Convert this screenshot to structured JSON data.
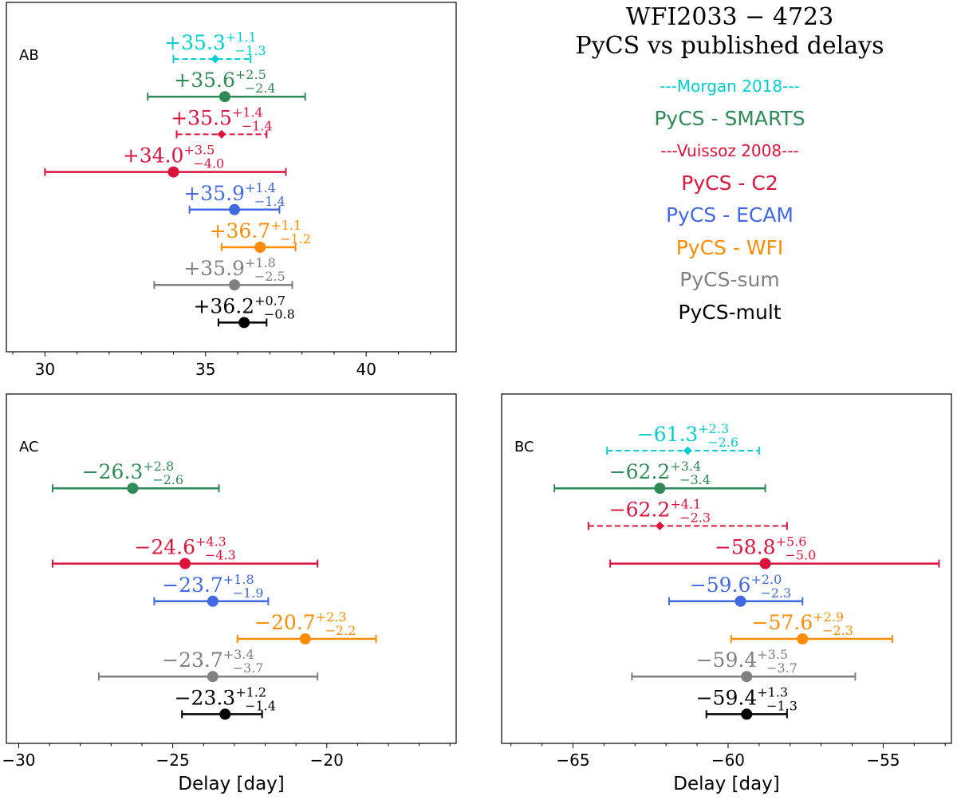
{
  "figure": {
    "title_line1": "WFI2033 − 4723",
    "title_line2": "PyCS vs published delays"
  },
  "legend": [
    {
      "label": "---Morgan 2018---",
      "color": "#00CED1",
      "size": "small"
    },
    {
      "label": "PyCS - SMARTS",
      "color": "#2E8B57",
      "size": "normal"
    },
    {
      "label": "---Vuissoz 2008---",
      "color": "#DC143C",
      "size": "small"
    },
    {
      "label": "PyCS - C2",
      "color": "#DC143C",
      "size": "normal"
    },
    {
      "label": "PyCS - ECAM",
      "color": "#4169E1",
      "size": "normal"
    },
    {
      "label": "PyCS - WFI",
      "color": "#FF8C00",
      "size": "normal"
    },
    {
      "label": "PyCS-sum",
      "color": "#808080",
      "size": "normal"
    },
    {
      "label": "PyCS-mult",
      "color": "#000000",
      "size": "normal"
    }
  ],
  "chart_data": [
    {
      "type": "errorbar",
      "panel_label": "AB",
      "xlabel": "",
      "xlim": [
        28.8,
        42.8
      ],
      "xticks": [
        30,
        35,
        40
      ],
      "xtick_labels": [
        "30",
        "35",
        "40"
      ],
      "rows": [
        {
          "name": "Morgan 2018",
          "value": 35.3,
          "plus": 1.1,
          "minus": 1.3,
          "label": "+35.3",
          "plus_label": "+1.1",
          "minus_label": "−1.3",
          "color": "#00CED1",
          "marker": "diamond",
          "dashed": true
        },
        {
          "name": "PyCS - SMARTS",
          "value": 35.6,
          "plus": 2.5,
          "minus": 2.4,
          "label": "+35.6",
          "plus_label": "+2.5",
          "minus_label": "−2.4",
          "color": "#2E8B57",
          "marker": "circle",
          "dashed": false
        },
        {
          "name": "Vuissoz 2008",
          "value": 35.5,
          "plus": 1.4,
          "minus": 1.4,
          "label": "+35.5",
          "plus_label": "+1.4",
          "minus_label": "−1.4",
          "color": "#DC143C",
          "marker": "diamond",
          "dashed": true
        },
        {
          "name": "PyCS - C2",
          "value": 34.0,
          "plus": 3.5,
          "minus": 4.0,
          "label": "+34.0",
          "plus_label": "+3.5",
          "minus_label": "−4.0",
          "color": "#DC143C",
          "marker": "circle",
          "dashed": false
        },
        {
          "name": "PyCS - ECAM",
          "value": 35.9,
          "plus": 1.4,
          "minus": 1.4,
          "label": "+35.9",
          "plus_label": "+1.4",
          "minus_label": "−1.4",
          "color": "#4169E1",
          "marker": "circle",
          "dashed": false
        },
        {
          "name": "PyCS - WFI",
          "value": 36.7,
          "plus": 1.1,
          "minus": 1.2,
          "label": "+36.7",
          "plus_label": "+1.1",
          "minus_label": "−1.2",
          "color": "#FF8C00",
          "marker": "circle",
          "dashed": false
        },
        {
          "name": "PyCS-sum",
          "value": 35.9,
          "plus": 1.8,
          "minus": 2.5,
          "label": "+35.9",
          "plus_label": "+1.8",
          "minus_label": "−2.5",
          "color": "#808080",
          "marker": "circle",
          "dashed": false
        },
        {
          "name": "PyCS-mult",
          "value": 36.2,
          "plus": 0.7,
          "minus": 0.8,
          "label": "+36.2",
          "plus_label": "+0.7",
          "minus_label": "−0.8",
          "color": "#000000",
          "marker": "circle",
          "dashed": false
        }
      ]
    },
    {
      "type": "errorbar",
      "panel_label": "AC",
      "xlabel": "Delay [day]",
      "xlim": [
        -30.4,
        -15.8
      ],
      "xticks": [
        -30,
        -25,
        -20
      ],
      "xtick_labels": [
        "−30",
        "−25",
        "−20"
      ],
      "rows": [
        {
          "name": "Morgan 2018",
          "value": null
        },
        {
          "name": "PyCS - SMARTS",
          "value": -26.3,
          "plus": 2.8,
          "minus": 2.6,
          "label": "−26.3",
          "plus_label": "+2.8",
          "minus_label": "−2.6",
          "color": "#2E8B57",
          "marker": "circle",
          "dashed": false
        },
        {
          "name": "Vuissoz 2008",
          "value": null
        },
        {
          "name": "PyCS - C2",
          "value": -24.6,
          "plus": 4.3,
          "minus": 4.3,
          "label": "−24.6",
          "plus_label": "+4.3",
          "minus_label": "−4.3",
          "color": "#DC143C",
          "marker": "circle",
          "dashed": false
        },
        {
          "name": "PyCS - ECAM",
          "value": -23.7,
          "plus": 1.8,
          "minus": 1.9,
          "label": "−23.7",
          "plus_label": "+1.8",
          "minus_label": "−1.9",
          "color": "#4169E1",
          "marker": "circle",
          "dashed": false
        },
        {
          "name": "PyCS - WFI",
          "value": -20.7,
          "plus": 2.3,
          "minus": 2.2,
          "label": "−20.7",
          "plus_label": "+2.3",
          "minus_label": "−2.2",
          "color": "#FF8C00",
          "marker": "circle",
          "dashed": false
        },
        {
          "name": "PyCS-sum",
          "value": -23.7,
          "plus": 3.4,
          "minus": 3.7,
          "label": "−23.7",
          "plus_label": "+3.4",
          "minus_label": "−3.7",
          "color": "#808080",
          "marker": "circle",
          "dashed": false
        },
        {
          "name": "PyCS-mult",
          "value": -23.3,
          "plus": 1.2,
          "minus": 1.4,
          "label": "−23.3",
          "plus_label": "+1.2",
          "minus_label": "−1.4",
          "color": "#000000",
          "marker": "circle",
          "dashed": false
        }
      ]
    },
    {
      "type": "errorbar",
      "panel_label": "BC",
      "xlabel": "Delay [day]",
      "xlim": [
        -67.3,
        -52.8
      ],
      "xticks": [
        -65,
        -60,
        -55
      ],
      "xtick_labels": [
        "−65",
        "−60",
        "−55"
      ],
      "rows": [
        {
          "name": "Morgan 2018",
          "value": -61.3,
          "plus": 2.3,
          "minus": 2.6,
          "label": "−61.3",
          "plus_label": "+2.3",
          "minus_label": "−2.6",
          "color": "#00CED1",
          "marker": "diamond",
          "dashed": true
        },
        {
          "name": "PyCS - SMARTS",
          "value": -62.2,
          "plus": 3.4,
          "minus": 3.4,
          "label": "−62.2",
          "plus_label": "+3.4",
          "minus_label": "−3.4",
          "color": "#2E8B57",
          "marker": "circle",
          "dashed": false
        },
        {
          "name": "Vuissoz 2008",
          "value": -62.2,
          "plus": 4.1,
          "minus": 2.3,
          "label": "−62.2",
          "plus_label": "+4.1",
          "minus_label": "−2.3",
          "color": "#DC143C",
          "marker": "diamond",
          "dashed": true
        },
        {
          "name": "PyCS - C2",
          "value": -58.8,
          "plus": 5.6,
          "minus": 5.0,
          "label": "−58.8",
          "plus_label": "+5.6",
          "minus_label": "−5.0",
          "color": "#DC143C",
          "marker": "circle",
          "dashed": false
        },
        {
          "name": "PyCS - ECAM",
          "value": -59.6,
          "plus": 2.0,
          "minus": 2.3,
          "label": "−59.6",
          "plus_label": "+2.0",
          "minus_label": "−2.3",
          "color": "#4169E1",
          "marker": "circle",
          "dashed": false
        },
        {
          "name": "PyCS - WFI",
          "value": -57.6,
          "plus": 2.9,
          "minus": 2.3,
          "label": "−57.6",
          "plus_label": "+2.9",
          "minus_label": "−2.3",
          "color": "#FF8C00",
          "marker": "circle",
          "dashed": false
        },
        {
          "name": "PyCS-sum",
          "value": -59.4,
          "plus": 3.5,
          "minus": 3.7,
          "label": "−59.4",
          "plus_label": "+3.5",
          "minus_label": "−3.7",
          "color": "#808080",
          "marker": "circle",
          "dashed": false
        },
        {
          "name": "PyCS-mult",
          "value": -59.4,
          "plus": 1.3,
          "minus": 1.3,
          "label": "−59.4",
          "plus_label": "+1.3",
          "minus_label": "−1.3",
          "color": "#000000",
          "marker": "circle",
          "dashed": false
        }
      ]
    }
  ]
}
